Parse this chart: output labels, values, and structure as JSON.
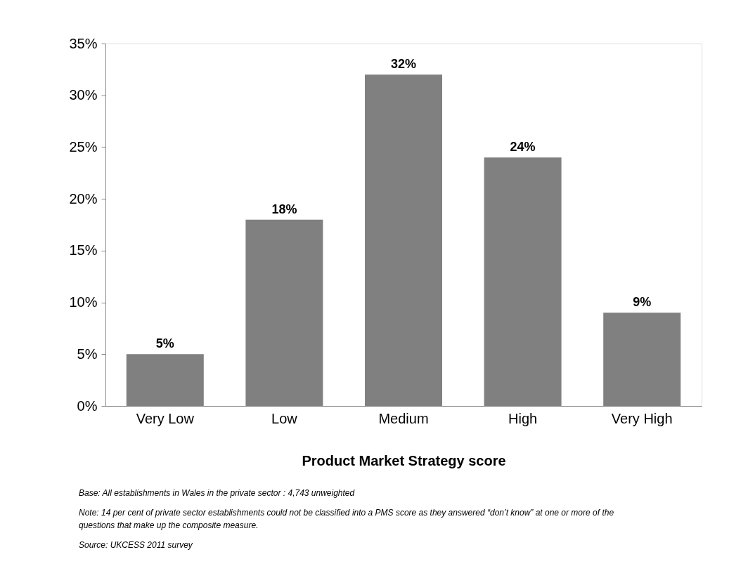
{
  "chart_data": {
    "type": "bar",
    "xlabel": "Product Market Strategy score",
    "categories": [
      "Very Low",
      "Low",
      "Medium",
      "High",
      "Very High"
    ],
    "values": [
      5,
      18,
      32,
      24,
      9
    ],
    "value_labels": [
      "5%",
      "18%",
      "32%",
      "24%",
      "9%"
    ],
    "color": "#808080",
    "ylim": [
      0,
      35
    ],
    "yticks": [
      {
        "value": 0,
        "label": "0%"
      },
      {
        "value": 5,
        "label": "5%"
      },
      {
        "value": 10,
        "label": "10%"
      },
      {
        "value": 15,
        "label": "15%"
      },
      {
        "value": 20,
        "label": "20%"
      },
      {
        "value": 25,
        "label": "25%"
      },
      {
        "value": 30,
        "label": "30%"
      },
      {
        "value": 35,
        "label": "35%"
      }
    ],
    "grid": false,
    "annotations": [
      "Base: All establishments in Wales in the private sector : 4,743 unweighted",
      "Note: 14 per cent of private sector establishments could not be classified into a PMS score as they answered “don’t know” at one or more of the questions that make up the composite measure.",
      "Source: UKCESS 2011 survey"
    ]
  }
}
